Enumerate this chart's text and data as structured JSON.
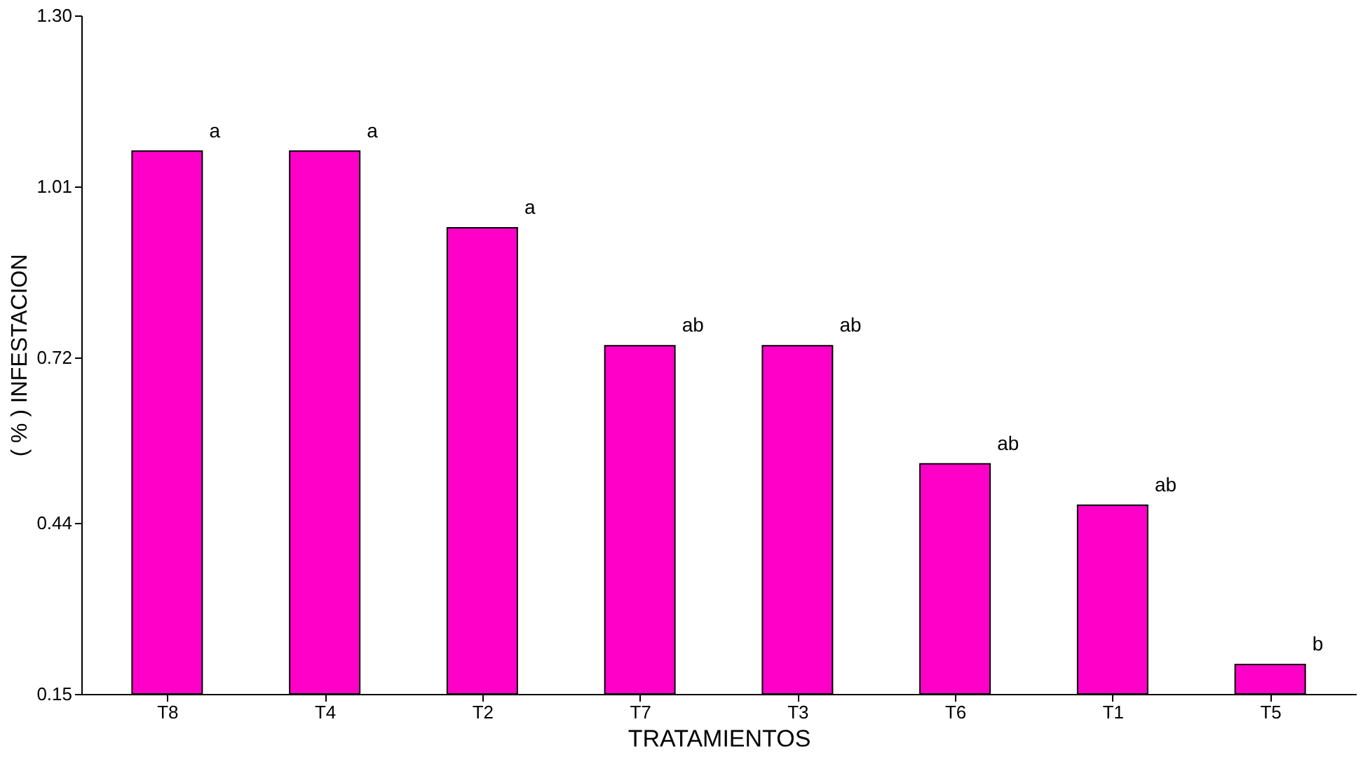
{
  "chart_data": {
    "type": "bar",
    "xlabel": "TRATAMIENTOS",
    "ylabel": "( % ) INFESTACION",
    "categories": [
      "T8",
      "T4",
      "T2",
      "T7",
      "T3",
      "T6",
      "T1",
      "T5"
    ],
    "values": [
      1.07,
      1.07,
      0.94,
      0.74,
      0.74,
      0.54,
      0.47,
      0.2
    ],
    "color": "#ff00c8",
    "ylim": [
      0.15,
      1.3
    ],
    "yticks": [
      {
        "value": 0.15,
        "label": "0.15"
      },
      {
        "value": 0.44,
        "label": "0.44"
      },
      {
        "value": 0.72,
        "label": "0.72"
      },
      {
        "value": 1.01,
        "label": "1.01"
      },
      {
        "value": 1.3,
        "label": "1.30"
      }
    ],
    "grid": false,
    "annotations": [
      {
        "text": "a",
        "x": "T8",
        "y": 1.07
      },
      {
        "text": "a",
        "x": "T4",
        "y": 1.07
      },
      {
        "text": "a",
        "x": "T2",
        "y": 0.94
      },
      {
        "text": "ab",
        "x": "T7",
        "y": 0.74
      },
      {
        "text": "ab",
        "x": "T3",
        "y": 0.74
      },
      {
        "text": "ab",
        "x": "T6",
        "y": 0.54
      },
      {
        "text": "ab",
        "x": "T1",
        "y": 0.47
      },
      {
        "text": "b",
        "x": "T5",
        "y": 0.2
      }
    ]
  }
}
